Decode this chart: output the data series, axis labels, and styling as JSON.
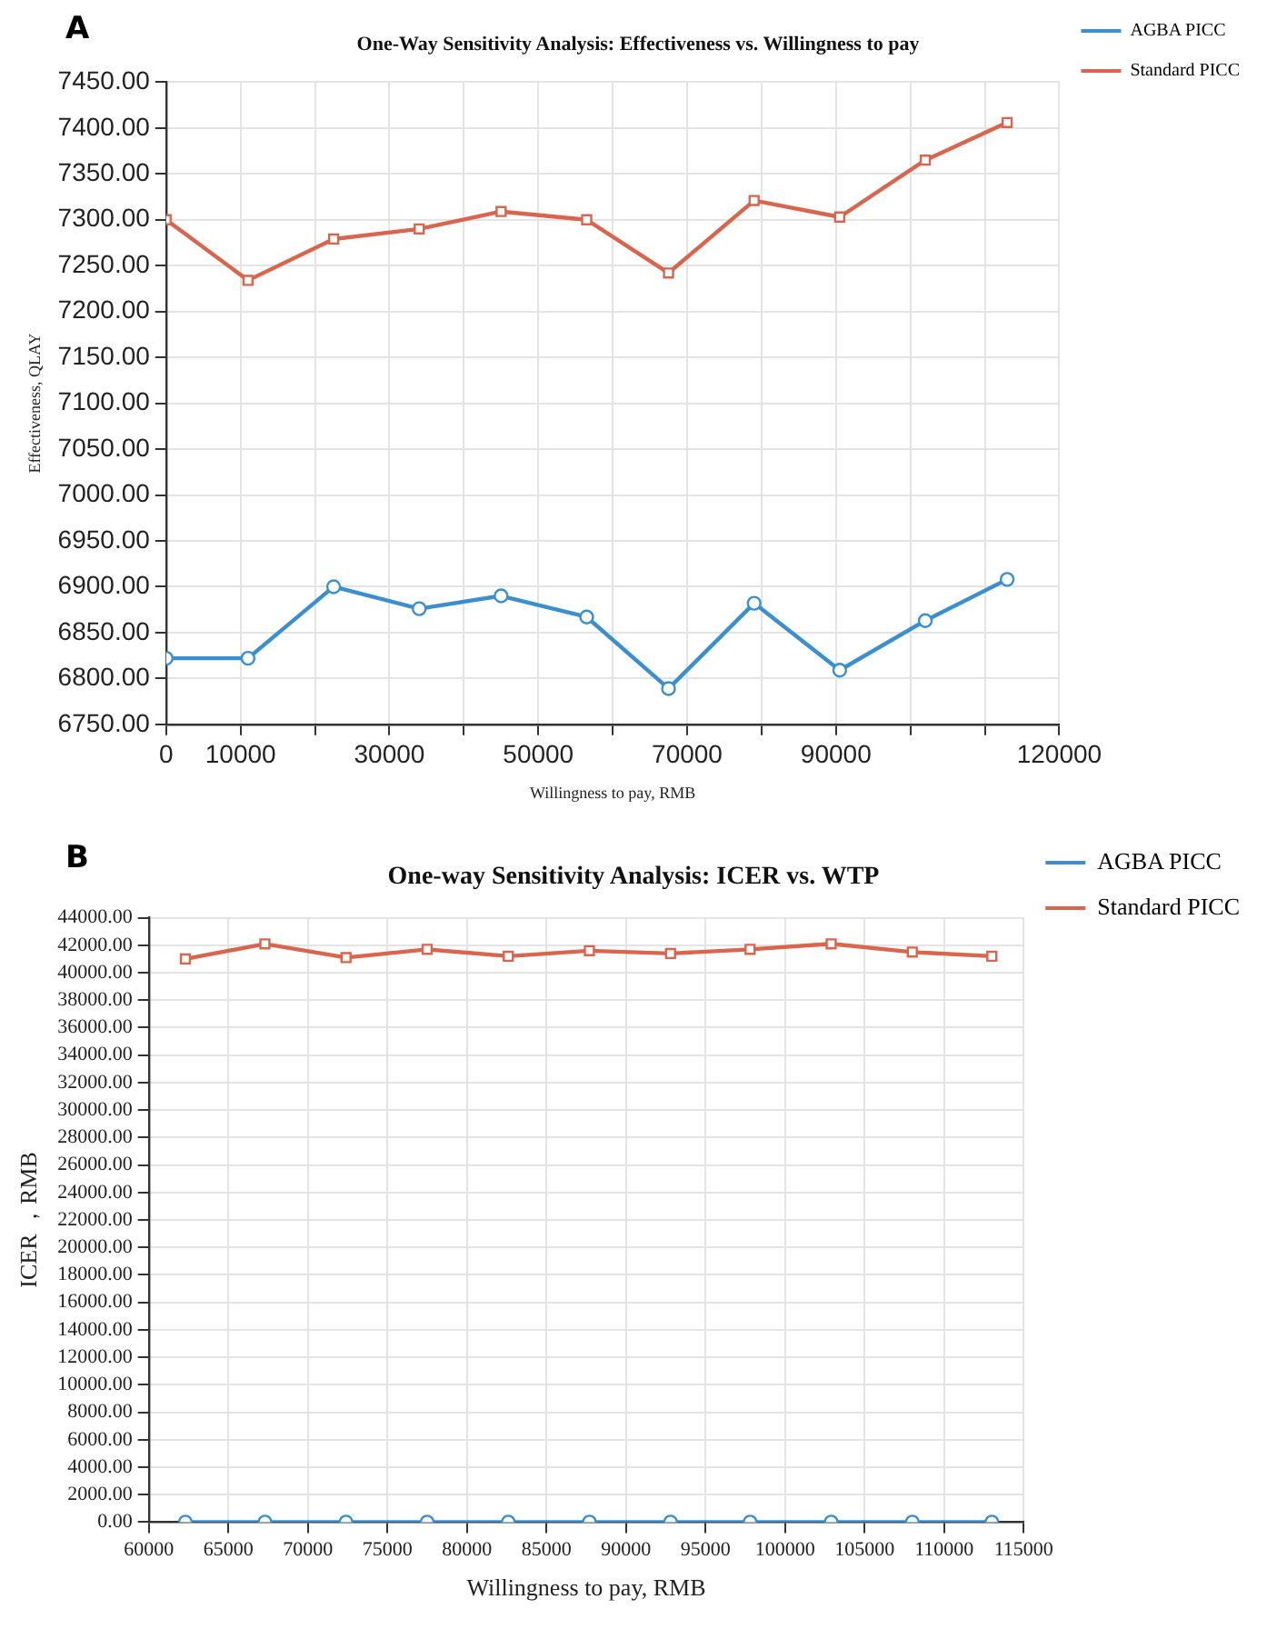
{
  "chart_data": [
    {
      "type": "line",
      "title": "One-Way Sensitivity Analysis: Effectiveness vs. Willingness to pay",
      "xlabel": "Willingness to pay, RMB",
      "ylabel": "Effectiveness, QLAY",
      "annotations": [
        "A"
      ],
      "x": [
        0,
        11000,
        22500,
        34000,
        45000,
        56500,
        67500,
        79000,
        90500,
        102000,
        113000
      ],
      "series": [
        {
          "name": "AGBA PICC",
          "color": "#3b8fd0",
          "marker": "circle",
          "values": [
            6822,
            6822,
            6900,
            6876,
            6890,
            6867,
            6789,
            6882,
            6809,
            6863,
            6908
          ]
        },
        {
          "name": "Standard PICC",
          "color": "#d9664c",
          "marker": "square",
          "values": [
            7300,
            7234,
            7279,
            7290,
            7309,
            7300,
            7242,
            7321,
            7303,
            7365,
            7406
          ]
        }
      ],
      "xlim": [
        0,
        120000
      ],
      "xticks": [
        0,
        10000,
        {
          "value": 20000,
          "label": null
        },
        30000,
        {
          "value": 40000,
          "label": null
        },
        50000,
        {
          "value": 60000,
          "label": null
        },
        70000,
        {
          "value": 80000,
          "label": null
        },
        90000,
        {
          "value": 100000,
          "label": null
        },
        {
          "value": 110000,
          "label": null
        },
        120000
      ],
      "ylim": [
        6750,
        7450
      ],
      "yticks": [
        {
          "value": 6750,
          "label": "6750.00"
        },
        {
          "value": 6800,
          "label": "6800.00"
        },
        {
          "value": 6850,
          "label": "6850.00"
        },
        {
          "value": 6900,
          "label": "6900.00"
        },
        {
          "value": 6950,
          "label": "6950.00"
        },
        {
          "value": 7000,
          "label": "7000.00"
        },
        {
          "value": 7050,
          "label": "7050.00"
        },
        {
          "value": 7100,
          "label": "7100.00"
        },
        {
          "value": 7150,
          "label": "7150.00"
        },
        {
          "value": 7200,
          "label": "7200.00"
        },
        {
          "value": 7250,
          "label": "7250.00"
        },
        {
          "value": 7300,
          "label": "7300.00"
        },
        {
          "value": 7350,
          "label": "7350.00"
        },
        {
          "value": 7400,
          "label": "7400.00"
        },
        {
          "value": 7450,
          "label": "7450.00"
        }
      ],
      "grid": true,
      "legend": "top right"
    },
    {
      "type": "line",
      "title": "One-way Sensitivity Analysis: ICER vs. WTP",
      "xlabel": "Willingness to pay, RMB",
      "ylabel": "ICER ，RMB",
      "annotations": [
        "B"
      ],
      "x": [
        62300,
        67300,
        72400,
        77500,
        82600,
        87700,
        92800,
        97800,
        102900,
        108000,
        113000
      ],
      "series": [
        {
          "name": "AGBA PICC",
          "color": "#3b8fd0",
          "marker": "circle",
          "values": [
            0,
            0,
            0,
            0,
            0,
            0,
            0,
            0,
            0,
            0,
            0
          ]
        },
        {
          "name": "Standard PICC",
          "color": "#d9664c",
          "marker": "square",
          "values": [
            41000,
            42100,
            41100,
            41700,
            41200,
            41600,
            41400,
            41700,
            42100,
            41500,
            41200
          ]
        }
      ],
      "xlim": [
        60000,
        115000
      ],
      "xticks": [
        60000,
        65000,
        70000,
        75000,
        80000,
        85000,
        90000,
        95000,
        100000,
        105000,
        110000,
        115000
      ],
      "ylim": [
        0,
        44000
      ],
      "yticks": [
        {
          "value": 0,
          "label": "0.00"
        },
        {
          "value": 2000,
          "label": "2000.00"
        },
        {
          "value": 4000,
          "label": "4000.00"
        },
        {
          "value": 6000,
          "label": "6000.00"
        },
        {
          "value": 8000,
          "label": "8000.00"
        },
        {
          "value": 10000,
          "label": "10000.00"
        },
        {
          "value": 12000,
          "label": "12000.00"
        },
        {
          "value": 14000,
          "label": "14000.00"
        },
        {
          "value": 16000,
          "label": "16000.00"
        },
        {
          "value": 18000,
          "label": "18000.00"
        },
        {
          "value": 20000,
          "label": "20000.00"
        },
        {
          "value": 22000,
          "label": "22000.00"
        },
        {
          "value": 24000,
          "label": "24000.00"
        },
        {
          "value": 26000,
          "label": "26000.00"
        },
        {
          "value": 28000,
          "label": "28000.00"
        },
        {
          "value": 30000,
          "label": "30000.00"
        },
        {
          "value": 32000,
          "label": "32000.00"
        },
        {
          "value": 34000,
          "label": "34000.00"
        },
        {
          "value": 36000,
          "label": "36000.00"
        },
        {
          "value": 38000,
          "label": "38000.00"
        },
        {
          "value": 40000,
          "label": "40000.00"
        },
        {
          "value": 42000,
          "label": "42000.00"
        },
        {
          "value": 44000,
          "label": "44000.00"
        }
      ],
      "grid": true,
      "legend": "top right"
    }
  ]
}
